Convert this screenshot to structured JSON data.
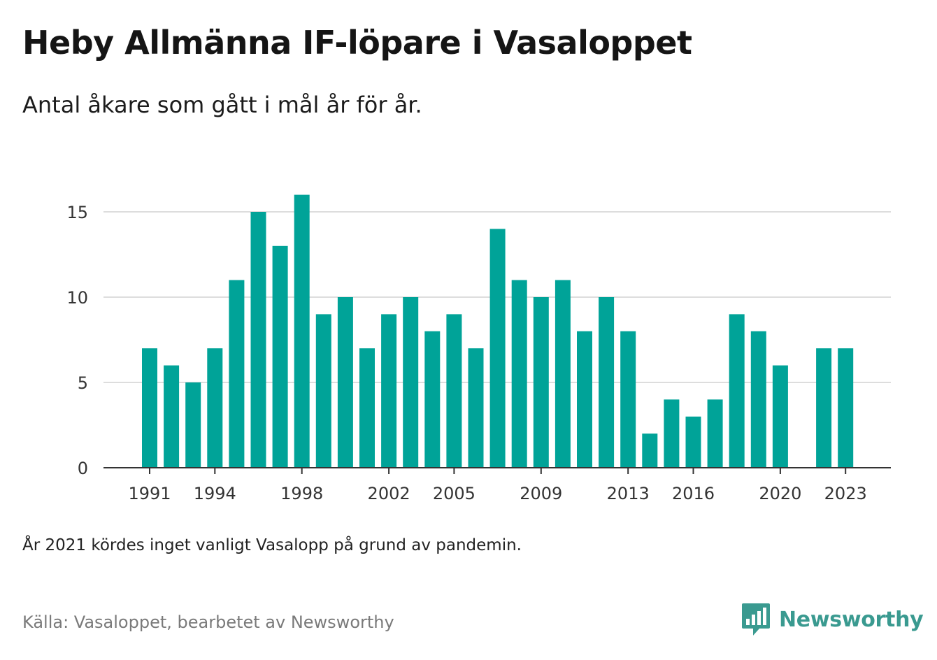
{
  "header": {
    "title": "Heby Allmänna IF-löpare i Vasaloppet",
    "subtitle": "Antal åkare som gått i mål år för år."
  },
  "footer": {
    "note": "År 2021 kördes inget vanligt Vasalopp på grund av pandemin.",
    "source": "Källa: Vasaloppet, bearbetet av Newsworthy",
    "brand_name": "Newsworthy",
    "brand_icon": "newsworthy-logo-icon"
  },
  "colors": {
    "bar": "#00a398",
    "gridline": "#dddddd",
    "axis": "#333333",
    "brand": "#3a9a90"
  },
  "chart_data": {
    "type": "bar",
    "categories": [
      1991,
      1992,
      1993,
      1994,
      1995,
      1996,
      1997,
      1998,
      1999,
      2000,
      2001,
      2002,
      2003,
      2004,
      2005,
      2006,
      2007,
      2008,
      2009,
      2010,
      2011,
      2012,
      2013,
      2014,
      2015,
      2016,
      2017,
      2018,
      2019,
      2020,
      2021,
      2022,
      2023
    ],
    "values": [
      7,
      6,
      5,
      7,
      11,
      15,
      13,
      16,
      9,
      10,
      7,
      9,
      10,
      8,
      9,
      7,
      14,
      11,
      10,
      11,
      8,
      10,
      8,
      2,
      4,
      3,
      4,
      9,
      8,
      6,
      null,
      7,
      7
    ],
    "x_tick_labels": [
      "1991",
      "1994",
      "1998",
      "2002",
      "2005",
      "2009",
      "2013",
      "2016",
      "2020",
      "2023"
    ],
    "y_ticks": [
      0,
      5,
      10,
      15
    ],
    "ylim": [
      0,
      17
    ],
    "xlabel": "",
    "ylabel": "",
    "grid": true,
    "legend": "none"
  }
}
